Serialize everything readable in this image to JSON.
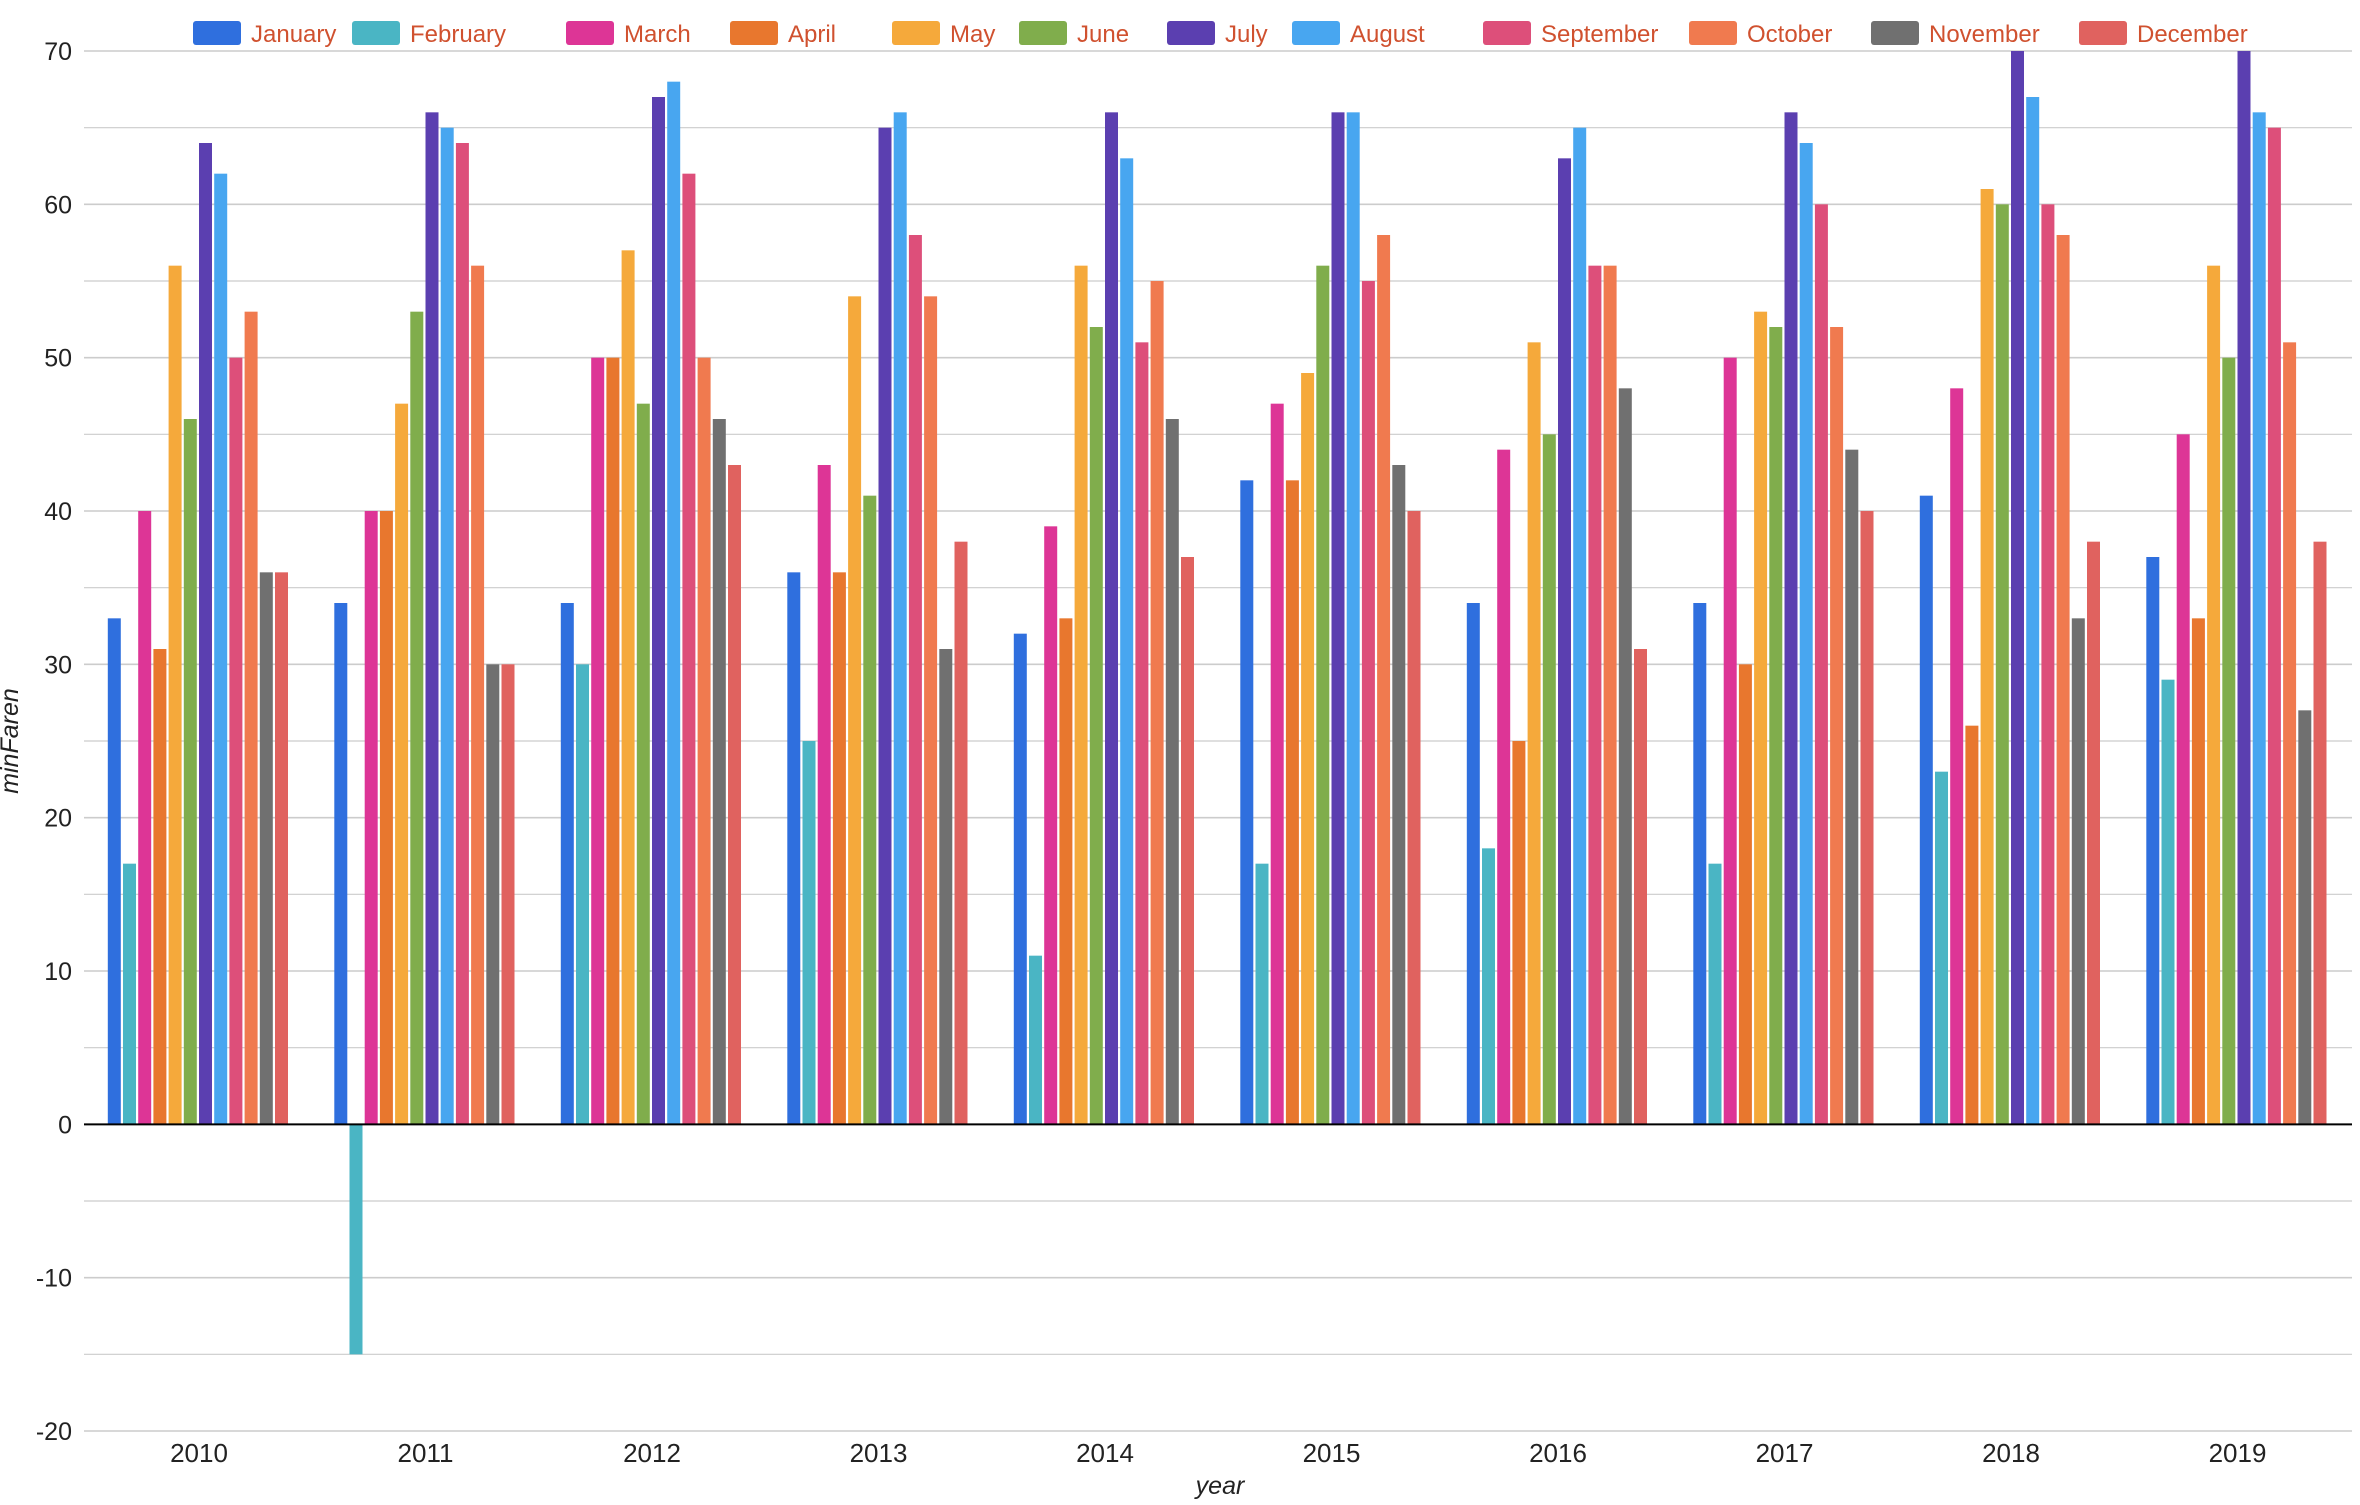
{
  "chart_data": {
    "type": "bar",
    "title": "",
    "xlabel": "year",
    "ylabel": "minFaren",
    "ylim": [
      -20,
      70
    ],
    "yticks": [
      70,
      60,
      50,
      40,
      30,
      20,
      10,
      0,
      -10,
      -20
    ],
    "grid": true,
    "legend_position": "top",
    "categories": [
      "2010",
      "2011",
      "2012",
      "2013",
      "2014",
      "2015",
      "2016",
      "2017",
      "2018",
      "2019"
    ],
    "series": [
      {
        "name": "January",
        "color": "#2f6fde",
        "values": [
          33,
          34,
          34,
          36,
          32,
          42,
          34,
          34,
          41,
          37
        ]
      },
      {
        "name": "February",
        "color": "#4ab5c4",
        "values": [
          17,
          -15,
          30,
          25,
          11,
          17,
          18,
          17,
          23,
          29
        ]
      },
      {
        "name": "March",
        "color": "#dd3596",
        "values": [
          40,
          40,
          50,
          43,
          39,
          47,
          44,
          50,
          48,
          45
        ]
      },
      {
        "name": "April",
        "color": "#e8772e",
        "values": [
          31,
          40,
          50,
          36,
          33,
          42,
          25,
          30,
          26,
          33
        ]
      },
      {
        "name": "May",
        "color": "#f5a93b",
        "values": [
          56,
          47,
          57,
          54,
          56,
          49,
          51,
          53,
          61,
          56
        ]
      },
      {
        "name": "June",
        "color": "#80ad4c",
        "values": [
          46,
          53,
          47,
          41,
          52,
          56,
          45,
          52,
          60,
          50
        ]
      },
      {
        "name": "July",
        "color": "#5b3fb0",
        "values": [
          64,
          66,
          67,
          65,
          66,
          66,
          63,
          66,
          70,
          70
        ]
      },
      {
        "name": "August",
        "color": "#48a6f0",
        "values": [
          62,
          65,
          68,
          66,
          63,
          66,
          65,
          64,
          67,
          66
        ]
      },
      {
        "name": "September",
        "color": "#dd4f7a",
        "values": [
          50,
          64,
          62,
          58,
          51,
          55,
          56,
          60,
          60,
          65
        ]
      },
      {
        "name": "October",
        "color": "#f07a4f",
        "values": [
          53,
          56,
          50,
          54,
          55,
          58,
          56,
          52,
          58,
          51
        ]
      },
      {
        "name": "November",
        "color": "#707070",
        "values": [
          36,
          30,
          46,
          31,
          46,
          43,
          48,
          44,
          33,
          27
        ]
      },
      {
        "name": "December",
        "color": "#e0625f",
        "values": [
          36,
          30,
          43,
          38,
          37,
          40,
          31,
          40,
          38,
          38
        ]
      }
    ]
  },
  "colors": {
    "legend_text": "#d0512f",
    "axis_text": "#222222",
    "gridline": "#cccccc",
    "zero_line": "#000000"
  }
}
